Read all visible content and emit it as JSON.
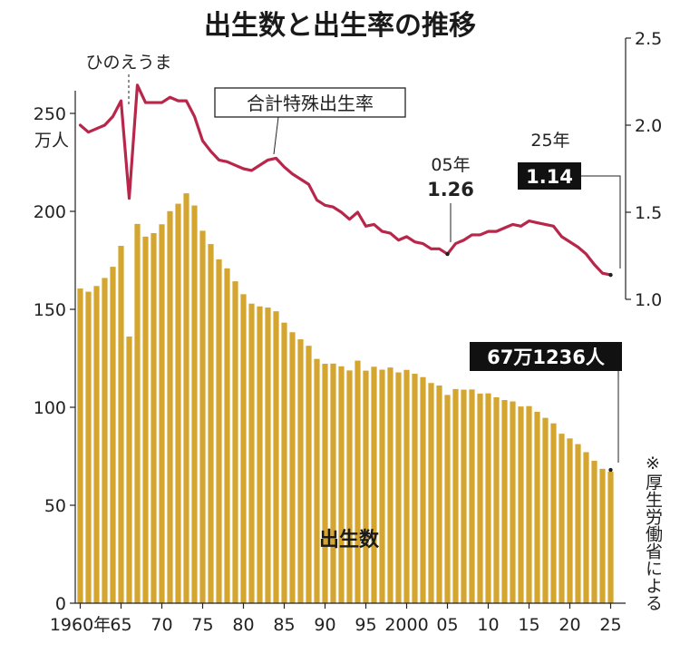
{
  "title": "出生数と出生率の推移",
  "colors": {
    "bars": "#D4A62F",
    "rate_line": "#B8264A",
    "text": "#1a1a1a",
    "box": "#111111"
  },
  "labels": {
    "left_unit_top": "250",
    "left_unit_bottom": "万人",
    "rate_series": "合計特殊出生率",
    "births_series": "出生数",
    "hinoeuma": "ひのえうま",
    "rate_2005_year": "05年",
    "rate_2005_value": "1.26",
    "rate_2025_year": "25年",
    "rate_2025_value": "1.14",
    "births_2025": "67万1236人",
    "source_note": "※厚生労働省による"
  },
  "chart_data": {
    "type": "bar+line",
    "title": "出生数と出生率の推移",
    "x_tick_labels": [
      "1960年",
      "65",
      "70",
      "75",
      "80",
      "85",
      "90",
      "95",
      "2000",
      "05",
      "10",
      "15",
      "20",
      "25"
    ],
    "x": [
      1960,
      1961,
      1962,
      1963,
      1964,
      1965,
      1966,
      1967,
      1968,
      1969,
      1970,
      1971,
      1972,
      1973,
      1974,
      1975,
      1976,
      1977,
      1978,
      1979,
      1980,
      1981,
      1982,
      1983,
      1984,
      1985,
      1986,
      1987,
      1988,
      1989,
      1990,
      1991,
      1992,
      1993,
      1994,
      1995,
      1996,
      1997,
      1998,
      1999,
      2000,
      2001,
      2002,
      2003,
      2004,
      2005,
      2006,
      2007,
      2008,
      2009,
      2010,
      2011,
      2012,
      2013,
      2014,
      2015,
      2016,
      2017,
      2018,
      2019,
      2020,
      2021,
      2022,
      2023,
      2024,
      2025
    ],
    "left_axis": {
      "label": "万人",
      "ticks": [
        0,
        50,
        100,
        150,
        200,
        250
      ],
      "lim": [
        0,
        250
      ]
    },
    "right_axis": {
      "ticks": [
        1.0,
        1.5,
        2.0,
        2.5
      ],
      "lim": [
        1.0,
        2.5
      ]
    },
    "series": [
      {
        "name": "出生数",
        "type": "bar",
        "axis": "left",
        "values": [
          160.6,
          159.0,
          161.9,
          166.0,
          171.7,
          182.4,
          136.1,
          193.6,
          187.1,
          188.9,
          193.4,
          200.1,
          203.9,
          209.2,
          203.0,
          190.1,
          183.3,
          175.5,
          170.9,
          164.3,
          157.7,
          152.9,
          151.5,
          150.9,
          149.0,
          143.2,
          138.3,
          134.7,
          131.4,
          124.7,
          122.2,
          122.3,
          120.9,
          118.8,
          123.8,
          118.7,
          120.7,
          119.2,
          120.3,
          117.8,
          119.1,
          117.1,
          115.4,
          112.4,
          111.1,
          106.3,
          109.3,
          109.0,
          109.1,
          107.0,
          107.1,
          105.1,
          103.7,
          103.0,
          100.4,
          100.6,
          97.7,
          94.6,
          91.8,
          86.5,
          84.1,
          81.2,
          77.1,
          72.7,
          68.6,
          67.1
        ]
      },
      {
        "name": "合計特殊出生率",
        "type": "line",
        "axis": "right",
        "values": [
          2.0,
          1.96,
          1.98,
          2.0,
          2.05,
          2.14,
          1.58,
          2.23,
          2.13,
          2.13,
          2.13,
          2.16,
          2.14,
          2.14,
          2.05,
          1.91,
          1.85,
          1.8,
          1.79,
          1.77,
          1.75,
          1.74,
          1.77,
          1.8,
          1.81,
          1.76,
          1.72,
          1.69,
          1.66,
          1.57,
          1.54,
          1.53,
          1.5,
          1.46,
          1.5,
          1.42,
          1.43,
          1.39,
          1.38,
          1.34,
          1.36,
          1.33,
          1.32,
          1.29,
          1.29,
          1.26,
          1.32,
          1.34,
          1.37,
          1.37,
          1.39,
          1.39,
          1.41,
          1.43,
          1.42,
          1.45,
          1.44,
          1.43,
          1.42,
          1.36,
          1.33,
          1.3,
          1.26,
          1.2,
          1.15,
          1.14
        ]
      }
    ],
    "annotations": [
      {
        "text": "ひのえうま",
        "x": 1966
      },
      {
        "text": "05年 1.26",
        "x": 2005
      },
      {
        "text": "25年 1.14",
        "x": 2025
      },
      {
        "text": "67万1236人",
        "x": 2025
      }
    ],
    "grid": false,
    "legend": "none"
  }
}
